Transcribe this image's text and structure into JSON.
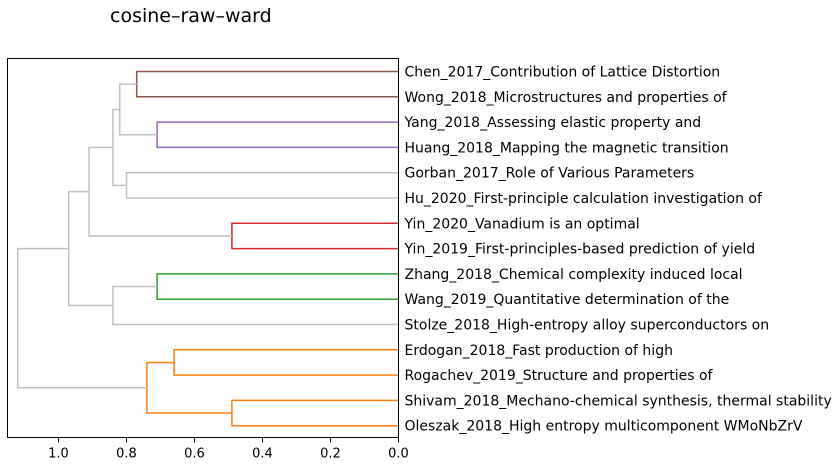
{
  "chart_data": {
    "type": "dendrogram",
    "title": "cosine–raw–ward",
    "orientation": "left",
    "xlim": [
      1.15,
      0.0
    ],
    "xticks": [
      1.0,
      0.8,
      0.6,
      0.4,
      0.2,
      0.0
    ],
    "xtick_labels": [
      "1.0",
      "0.8",
      "0.6",
      "0.4",
      "0.2",
      "0.0"
    ],
    "leaves": [
      "Chen_2017_Contribution of Lattice Distortion",
      "Wong_2018_Microstructures and properties of",
      "Yang_2018_Assessing elastic property and",
      "Huang_2018_Mapping the magnetic transition",
      "Gorban_2017_Role of Various Parameters",
      "Hu_2020_First-principle calculation investigation of",
      "Yin_2020_Vanadium is an optimal",
      "Yin_2019_First-principles-based prediction of yield",
      "Zhang_2018_Chemical complexity induced local",
      "Wang_2019_Quantitative determination of the",
      "Stolze_2018_High-entropy alloy superconductors on",
      "Erdogan_2018_Fast production of high",
      "Rogachev_2019_Structure and properties of",
      "Shivam_2018_Mechano-chemical synthesis, thermal stability",
      "Oleszak_2018_High entropy multicomponent WMoNbZrV"
    ],
    "merges": [
      {
        "id": 15,
        "children": [
          0,
          1
        ],
        "height": 0.77,
        "color": "#8c564b"
      },
      {
        "id": 16,
        "children": [
          2,
          3
        ],
        "height": 0.71,
        "color": "#9467bd"
      },
      {
        "id": 17,
        "children": [
          4,
          5
        ],
        "height": 0.8,
        "color": "#c0c0c0"
      },
      {
        "id": 18,
        "children": [
          6,
          7
        ],
        "height": 0.49,
        "color": "#d62728"
      },
      {
        "id": 19,
        "children": [
          8,
          9
        ],
        "height": 0.71,
        "color": "#2ca02c"
      },
      {
        "id": 20,
        "children": [
          11,
          12
        ],
        "height": 0.66,
        "color": "#ff7f0e"
      },
      {
        "id": 21,
        "children": [
          13,
          14
        ],
        "height": 0.49,
        "color": "#ff7f0e"
      },
      {
        "id": 22,
        "children": [
          15,
          16
        ],
        "height": 0.82,
        "color": "#c0c0c0"
      },
      {
        "id": 23,
        "children": [
          22,
          17
        ],
        "height": 0.84,
        "color": "#c0c0c0"
      },
      {
        "id": 24,
        "children": [
          23,
          18
        ],
        "height": 0.91,
        "color": "#c0c0c0"
      },
      {
        "id": 25,
        "children": [
          19,
          10
        ],
        "height": 0.84,
        "color": "#c0c0c0"
      },
      {
        "id": 26,
        "children": [
          24,
          25
        ],
        "height": 0.97,
        "color": "#c0c0c0"
      },
      {
        "id": 27,
        "children": [
          20,
          21
        ],
        "height": 0.74,
        "color": "#ff7f0e"
      },
      {
        "id": 28,
        "children": [
          26,
          27
        ],
        "height": 1.12,
        "color": "#c0c0c0"
      }
    ]
  }
}
